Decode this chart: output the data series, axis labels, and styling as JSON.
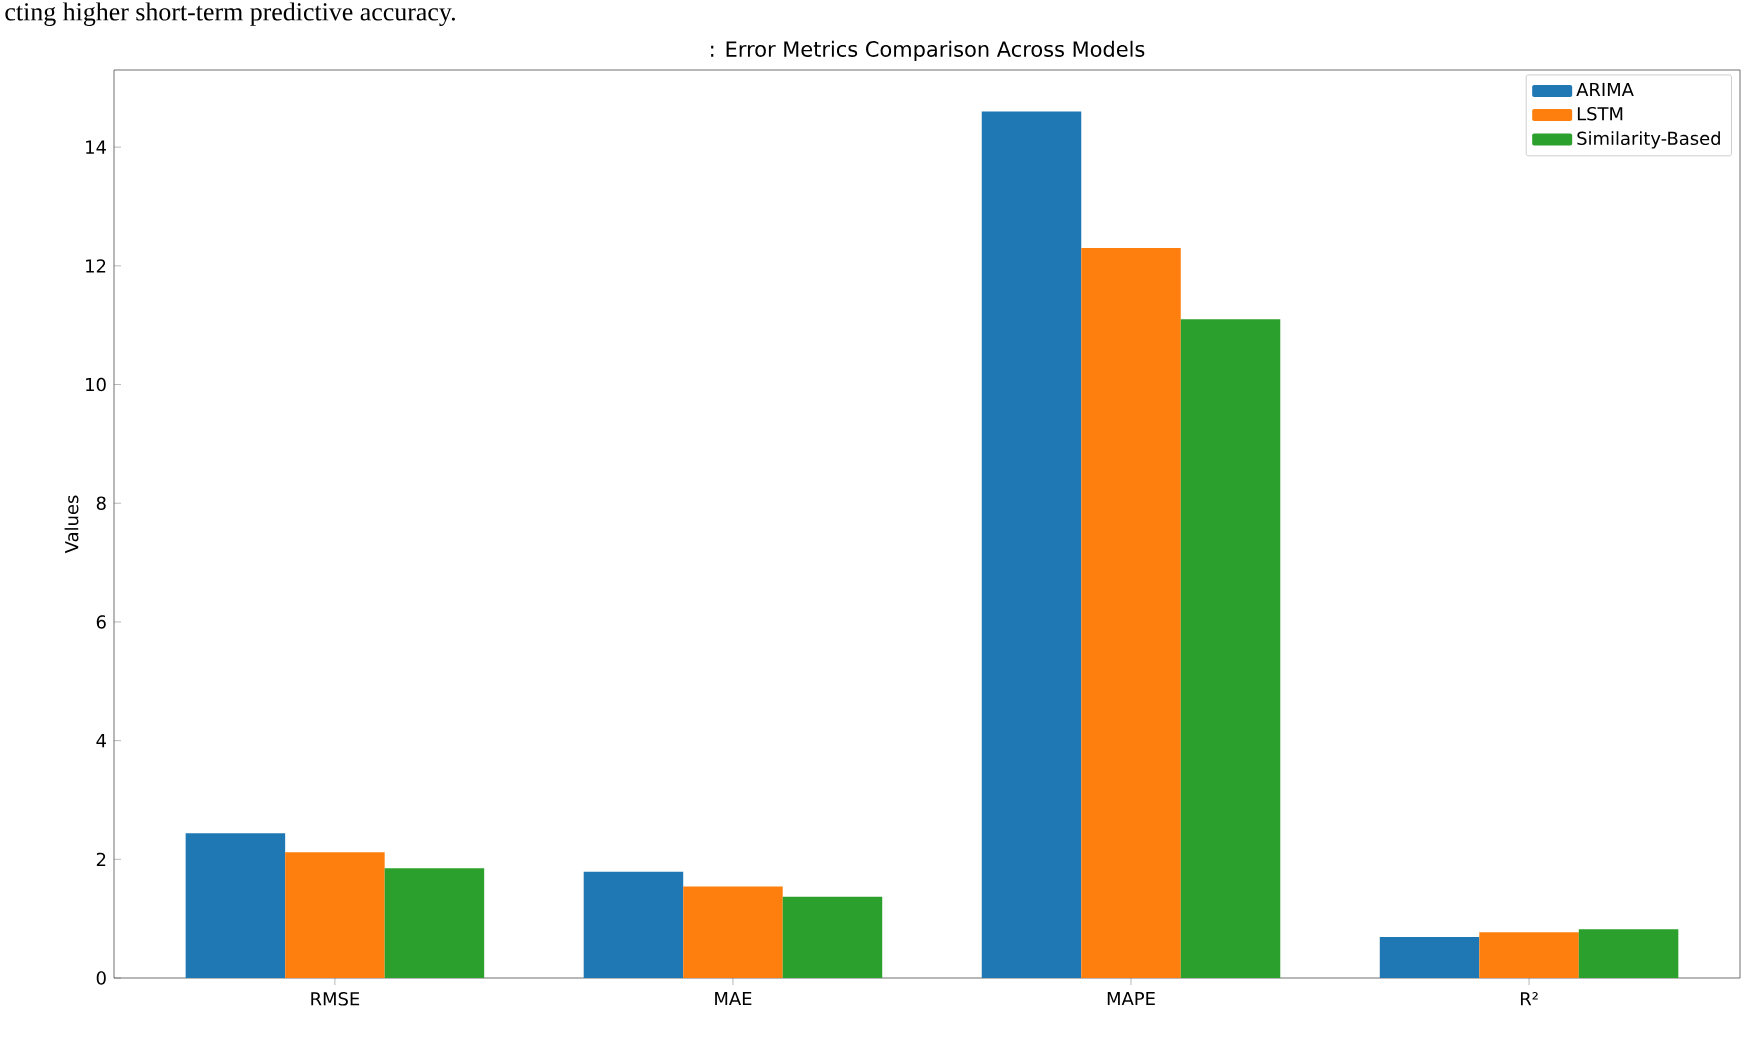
{
  "chart_data": {
    "type": "bar",
    "title": ": Error Metrics Comparison Across Models",
    "ylabel": "Values",
    "annotations": [
      "cting higher short-term predictive accuracy."
    ],
    "categories": [
      "RMSE",
      "MAE",
      "MAPE",
      "R²"
    ],
    "series": [
      {
        "name": "ARIMA",
        "color": "#1f77b4",
        "values": [
          2.44,
          1.79,
          14.6,
          0.69
        ]
      },
      {
        "name": "LSTM",
        "color": "#ff7f0e",
        "values": [
          2.12,
          1.54,
          12.3,
          0.77
        ]
      },
      {
        "name": "Similarity-Based",
        "color": "#2ca02c",
        "values": [
          1.85,
          1.37,
          11.1,
          0.82
        ]
      }
    ],
    "ylim": [
      0,
      15.3
    ],
    "yticks": [
      0,
      2,
      4,
      6,
      8,
      10,
      12,
      14
    ],
    "grid": false,
    "legend": "top right"
  }
}
